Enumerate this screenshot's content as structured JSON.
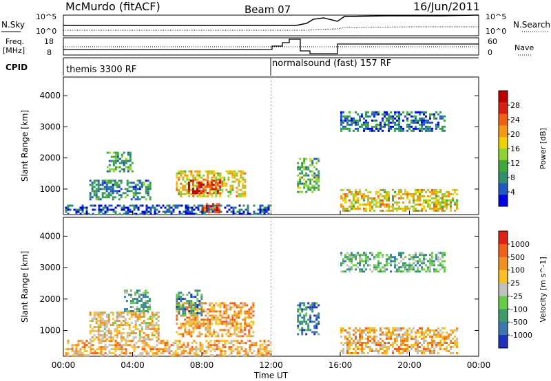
{
  "header": {
    "station": "McMurdo (fitACF)",
    "beam": "Beam 07",
    "date": "16/Jun/2011"
  },
  "noise_panel": {
    "left_label": "N.Sky",
    "right_label": "N.Search",
    "left_ticks": [
      "10^5",
      "10^0"
    ],
    "right_ticks": [
      "10^5",
      "10^0"
    ]
  },
  "freq_panel": {
    "left_label_1": "Freq.",
    "left_label_2": "[MHz]",
    "right_label": "Nave",
    "left_ticks": [
      "18",
      "8"
    ],
    "right_ticks": [
      "60",
      "0"
    ]
  },
  "cpid_panel": {
    "label": "CPID",
    "programs": [
      {
        "name": "themis 3300 RF",
        "start_hour": 0
      },
      {
        "name": "normalsound (fast) 157 RF",
        "start_hour": 12
      }
    ]
  },
  "chart_data": [
    {
      "type": "heatmap",
      "panel": "power",
      "ylabel": "Slant Range [km]",
      "y_ticks": [
        "1000",
        "2000",
        "3000",
        "4000"
      ],
      "y_tick_values": [
        1000,
        2000,
        3000,
        4000
      ],
      "ylim": [
        180,
        4600
      ],
      "xlim_hours": [
        0,
        24
      ],
      "colorbar_label": "Power [dB]",
      "colorbar_ticks": [
        "28",
        "24",
        "20",
        "16",
        "12",
        "8",
        "4"
      ],
      "colorbar_colors": [
        "#0000e8",
        "#1e58c8",
        "#2f8f6a",
        "#3fa83a",
        "#8fd230",
        "#f0d000",
        "#f59a10",
        "#f06010",
        "#d82010",
        "#c00000"
      ],
      "regions": [
        {
          "t0": 0.1,
          "t1": 12.0,
          "r0": 200,
          "r1": 500,
          "level": 0.15
        },
        {
          "t0": 1.5,
          "t1": 5.0,
          "r0": 700,
          "r1": 1300,
          "level": 0.25
        },
        {
          "t0": 2.5,
          "t1": 4.0,
          "r0": 1600,
          "r1": 2200,
          "level": 0.3
        },
        {
          "t0": 6.5,
          "t1": 10.5,
          "r0": 800,
          "r1": 1600,
          "level": 0.55
        },
        {
          "t0": 7.2,
          "t1": 9.0,
          "r0": 900,
          "r1": 1300,
          "level": 0.85
        },
        {
          "t0": 8.0,
          "t1": 9.0,
          "r0": 250,
          "r1": 550,
          "level": 0.8
        },
        {
          "t0": 13.5,
          "t1": 14.8,
          "r0": 900,
          "r1": 2000,
          "level": 0.35
        },
        {
          "t0": 16.0,
          "t1": 22.8,
          "r0": 300,
          "r1": 1000,
          "level": 0.55
        },
        {
          "t0": 16.0,
          "t1": 22.0,
          "r0": 2900,
          "r1": 3500,
          "level": 0.2
        }
      ]
    },
    {
      "type": "heatmap",
      "panel": "velocity",
      "ylabel": "Slant Range [km]",
      "y_ticks": [
        "1000",
        "2000",
        "3000",
        "4000"
      ],
      "y_tick_values": [
        1000,
        2000,
        3000,
        4000
      ],
      "ylim": [
        180,
        4600
      ],
      "xlim_hours": [
        0,
        24
      ],
      "x_ticks": [
        "00:00",
        "04:00",
        "08:00",
        "12:00",
        "16:00",
        "20:00",
        "00:00"
      ],
      "x_tick_values": [
        0,
        4,
        8,
        12,
        16,
        20,
        24
      ],
      "xlabel": "Time UT",
      "colorbar_label": "Velocity [m s^-1]",
      "colorbar_ticks": [
        "1000",
        "500",
        "100",
        "25",
        "-25",
        "-100",
        "-500",
        "-1000"
      ],
      "colorbar_colors": [
        "#2030c0",
        "#3a78b0",
        "#3c9c68",
        "#66cc44",
        "#c0c0c0",
        "#f8c020",
        "#f09020",
        "#f06018",
        "#e02010"
      ],
      "regions": [
        {
          "t0": 0.1,
          "t1": 12.0,
          "r0": 200,
          "r1": 700,
          "level": 0.65
        },
        {
          "t0": 1.5,
          "t1": 5.5,
          "r0": 700,
          "r1": 1600,
          "level": 0.6
        },
        {
          "t0": 3.5,
          "t1": 5.0,
          "r0": 1600,
          "r1": 2300,
          "level": 0.3
        },
        {
          "t0": 6.5,
          "t1": 11.0,
          "r0": 800,
          "r1": 1900,
          "level": 0.7
        },
        {
          "t0": 6.5,
          "t1": 8.0,
          "r0": 1500,
          "r1": 2300,
          "level": 0.25
        },
        {
          "t0": 13.5,
          "t1": 14.7,
          "r0": 900,
          "r1": 1900,
          "level": 0.2
        },
        {
          "t0": 16.0,
          "t1": 22.8,
          "r0": 300,
          "r1": 1100,
          "level": 0.65
        },
        {
          "t0": 16.0,
          "t1": 22.0,
          "r0": 2900,
          "r1": 3500,
          "level": 0.35
        }
      ]
    }
  ]
}
